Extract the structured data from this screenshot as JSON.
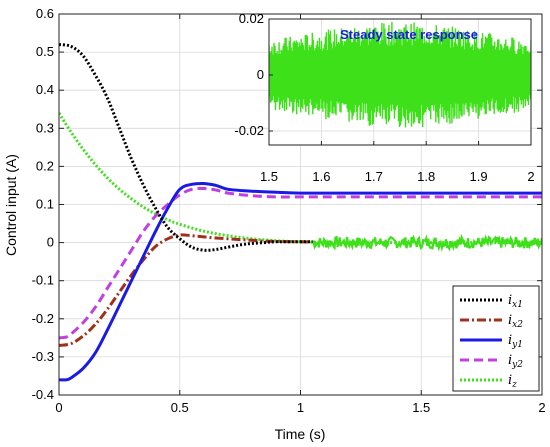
{
  "chart_data": [
    {
      "type": "line",
      "title": "",
      "xlabel": "Time (s)",
      "ylabel": "Control input (A)",
      "xlim": [
        0,
        2
      ],
      "ylim": [
        -0.4,
        0.6
      ],
      "xticks": [
        0,
        0.5,
        1,
        1.5,
        2
      ],
      "xtick_labels": [
        "0",
        "0.5",
        "1",
        "1.5",
        "2"
      ],
      "yticks": [
        -0.4,
        -0.3,
        -0.2,
        -0.1,
        0,
        0.1,
        0.2,
        0.3,
        0.4,
        0.5,
        0.6
      ],
      "ytick_labels": [
        "-0.4",
        "-0.3",
        "-0.2",
        "-0.1",
        "0",
        "0.1",
        "0.2",
        "0.3",
        "0.4",
        "0.5",
        "0.6"
      ],
      "grid": true,
      "legend_position": "bottom-right",
      "series": [
        {
          "name": "i_x1",
          "sub_main": "x",
          "sub_idx": "1",
          "color": "#000000",
          "style": "dotted",
          "x": [
            0,
            0.05,
            0.1,
            0.15,
            0.2,
            0.25,
            0.3,
            0.35,
            0.4,
            0.45,
            0.5,
            0.55,
            0.6,
            0.65,
            0.7,
            0.75,
            0.8,
            0.85,
            0.9,
            1.0,
            1.05
          ],
          "y": [
            0.52,
            0.515,
            0.49,
            0.44,
            0.38,
            0.3,
            0.22,
            0.15,
            0.09,
            0.04,
            0.01,
            -0.012,
            -0.02,
            -0.018,
            -0.012,
            -0.006,
            -0.002,
            0,
            0.002,
            0.002,
            0.002
          ]
        },
        {
          "name": "i_x2",
          "sub_main": "x",
          "sub_idx": "2",
          "color": "#a0301a",
          "style": "dashdot",
          "x": [
            0,
            0.05,
            0.1,
            0.15,
            0.2,
            0.25,
            0.3,
            0.35,
            0.4,
            0.45,
            0.5,
            0.55,
            0.6,
            0.65,
            0.7,
            0.75,
            0.8,
            0.85,
            0.9,
            1.0,
            1.05
          ],
          "y": [
            -0.27,
            -0.265,
            -0.245,
            -0.215,
            -0.175,
            -0.13,
            -0.085,
            -0.045,
            -0.01,
            0.01,
            0.02,
            0.018,
            0.015,
            0.012,
            0.01,
            0.008,
            0.006,
            0.004,
            0.003,
            0.002,
            0.002
          ]
        },
        {
          "name": "i_y1",
          "sub_main": "y",
          "sub_idx": "1",
          "color": "#1a1ae6",
          "style": "solid",
          "x": [
            0,
            0.03,
            0.05,
            0.1,
            0.15,
            0.2,
            0.25,
            0.3,
            0.35,
            0.4,
            0.45,
            0.5,
            0.55,
            0.6,
            0.65,
            0.7,
            0.8,
            0.9,
            1.0,
            1.2,
            1.5,
            1.8,
            2.0
          ],
          "y": [
            -0.36,
            -0.36,
            -0.355,
            -0.33,
            -0.29,
            -0.23,
            -0.165,
            -0.1,
            -0.035,
            0.03,
            0.09,
            0.14,
            0.153,
            0.155,
            0.15,
            0.14,
            0.135,
            0.132,
            0.13,
            0.13,
            0.13,
            0.13,
            0.13
          ]
        },
        {
          "name": "i_y2",
          "sub_main": "y",
          "sub_idx": "2",
          "color": "#c040e0",
          "style": "dashed",
          "x": [
            0,
            0.03,
            0.05,
            0.1,
            0.15,
            0.2,
            0.25,
            0.3,
            0.35,
            0.4,
            0.45,
            0.5,
            0.55,
            0.6,
            0.65,
            0.7,
            0.8,
            0.9,
            1.0,
            1.2,
            1.5,
            1.8,
            2.0
          ],
          "y": [
            -0.25,
            -0.248,
            -0.24,
            -0.21,
            -0.17,
            -0.12,
            -0.07,
            -0.02,
            0.03,
            0.07,
            0.1,
            0.125,
            0.14,
            0.142,
            0.138,
            0.13,
            0.123,
            0.12,
            0.12,
            0.12,
            0.12,
            0.12,
            0.12
          ]
        },
        {
          "name": "i_z",
          "sub_main": "z",
          "sub_idx": "",
          "color": "#3ee01a",
          "style": "dotted",
          "x": [
            0,
            0.05,
            0.1,
            0.15,
            0.2,
            0.25,
            0.3,
            0.35,
            0.4,
            0.45,
            0.5,
            0.6,
            0.7,
            0.8,
            0.9,
            1.0,
            1.2,
            1.5,
            1.8,
            2.0
          ],
          "y": [
            0.34,
            0.29,
            0.245,
            0.205,
            0.17,
            0.14,
            0.115,
            0.093,
            0.075,
            0.06,
            0.048,
            0.03,
            0.018,
            0.01,
            0.005,
            0.002,
            0,
            0,
            0,
            0
          ]
        }
      ],
      "steady_state_noise": {
        "series": "i_z",
        "x_range": [
          1.05,
          2.0
        ],
        "amplitude": 0.015,
        "color": "#3ee01a"
      }
    },
    {
      "type": "line",
      "title": "Steady state response",
      "title_color": "#1a1ae6",
      "xlabel": "",
      "ylabel": "",
      "xlim": [
        1.5,
        2.0
      ],
      "ylim": [
        -0.025,
        0.02
      ],
      "xticks": [
        1.5,
        1.6,
        1.7,
        1.8,
        1.9,
        2.0
      ],
      "xtick_labels": [
        "1.5",
        "1.6",
        "1.7",
        "1.8",
        "1.9",
        "2"
      ],
      "yticks": [
        -0.02,
        0,
        0.02
      ],
      "ytick_labels": [
        "-0.02",
        "0",
        "0.02"
      ],
      "grid": true,
      "series": [
        {
          "name": "i_z",
          "color": "#3ee01a",
          "style": "noise-band",
          "x_range": [
            1.5,
            2.0
          ],
          "upper": 0.019,
          "lower": -0.019
        }
      ]
    }
  ]
}
